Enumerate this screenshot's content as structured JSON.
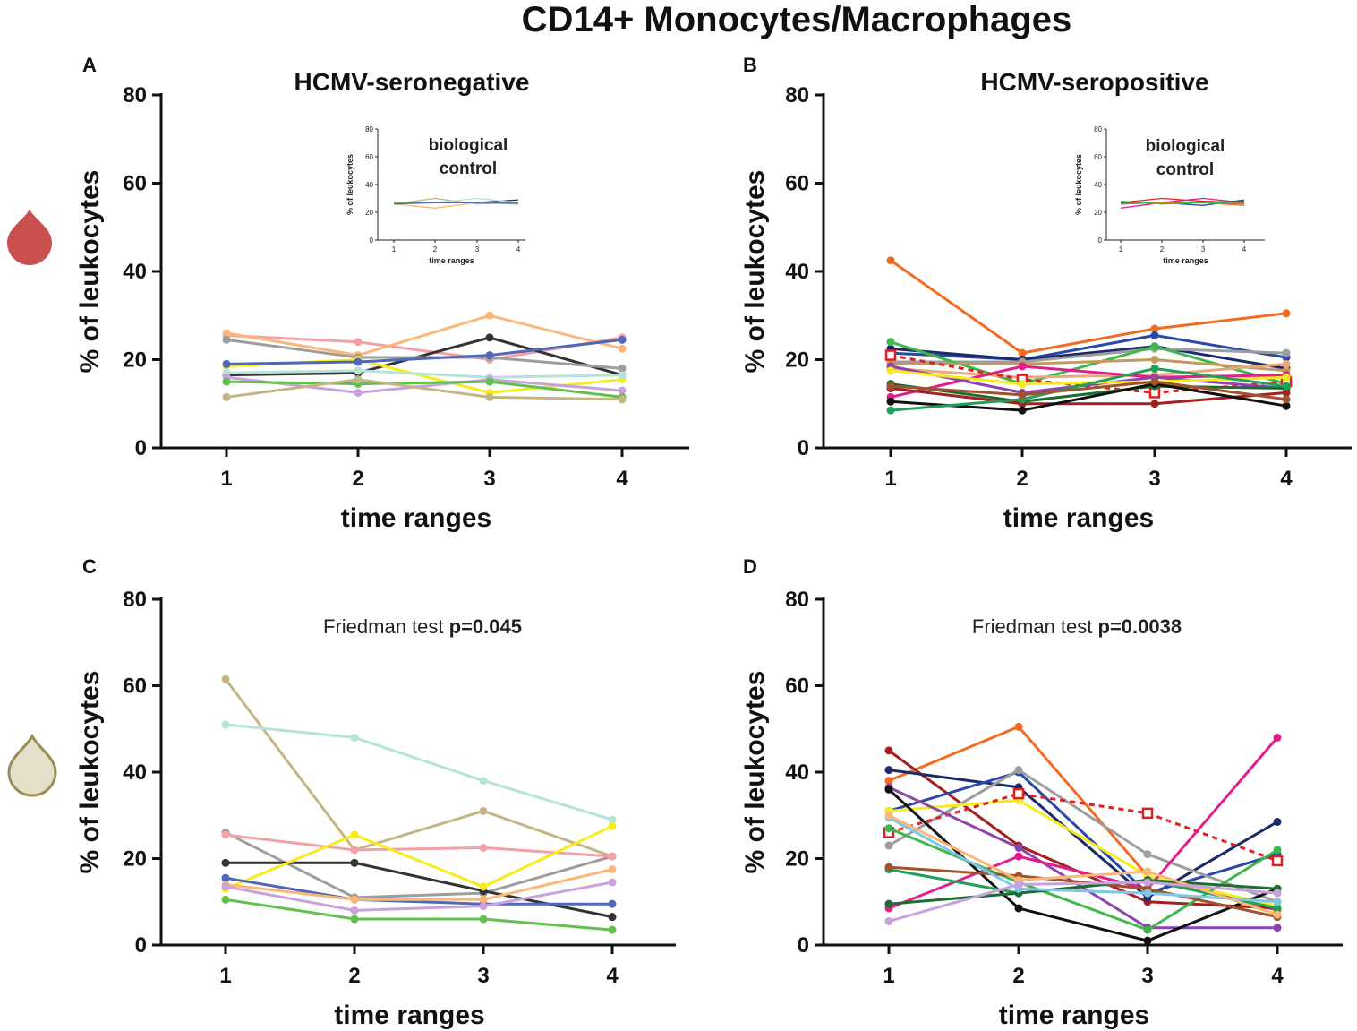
{
  "figure": {
    "title": "CD14+ Monocytes/Macrophages",
    "colors": {
      "blood_drop": "#c9504f",
      "tissue_drop_fill": "#e3dfcb",
      "tissue_drop_stroke": "#9a8d52",
      "axis": "#111111"
    },
    "icons": [
      "blood-drop-icon",
      "tissue-drop-icon"
    ]
  },
  "chart_data": [
    {
      "panel": "A",
      "type": "line",
      "title": "HCMV-seronegative",
      "xlabel": "time ranges",
      "ylabel": "% of leukocytes",
      "categories": [
        "1",
        "2",
        "3",
        "4"
      ],
      "y_ticks": [
        "0",
        "20",
        "40",
        "60",
        "80"
      ],
      "ylim": [
        0,
        80
      ],
      "series": [
        {
          "color": "#f4a0a6",
          "values": [
            25.5,
            24.0,
            20.0,
            25.0
          ]
        },
        {
          "color": "#fbb77a",
          "values": [
            26.0,
            21.0,
            30.0,
            22.5
          ]
        },
        {
          "color": "#333333",
          "values": [
            16.5,
            17.0,
            25.0,
            16.5
          ]
        },
        {
          "color": "#9d9d9d",
          "values": [
            24.5,
            20.5,
            20.5,
            18.0
          ]
        },
        {
          "color": "#f6eb1b",
          "values": [
            18.5,
            20.0,
            12.5,
            15.5
          ]
        },
        {
          "color": "#5068b8",
          "values": [
            19.0,
            19.5,
            21.0,
            24.5
          ]
        },
        {
          "color": "#b5e3d9",
          "values": [
            17.0,
            17.5,
            16.0,
            16.5
          ]
        },
        {
          "color": "#c9a1dd",
          "values": [
            16.0,
            12.5,
            15.5,
            13.0
          ]
        },
        {
          "color": "#62c04d",
          "values": [
            15.0,
            14.5,
            15.0,
            11.5
          ]
        },
        {
          "color": "#c4b584",
          "values": [
            11.5,
            15.5,
            11.5,
            11.0
          ]
        }
      ],
      "inset": {
        "title_line1": "biological",
        "title_line2": "control",
        "xlabel": "time ranges",
        "ylabel": "% of leukocytes",
        "categories": [
          "1",
          "2",
          "3",
          "4"
        ],
        "y_ticks": [
          "0",
          "20",
          "40",
          "60",
          "80"
        ],
        "ylim": [
          0,
          80
        ],
        "series": [
          {
            "color": "#333333",
            "values": [
              27,
              27,
              27,
              29
            ]
          },
          {
            "color": "#c4b584",
            "values": [
              26,
              30,
              26,
              27
            ]
          },
          {
            "color": "#fbb77a",
            "values": [
              26,
              23,
              27,
              27
            ]
          },
          {
            "color": "#b5e3d9",
            "values": [
              27,
              27,
              30,
              27
            ]
          },
          {
            "color": "#62c04d",
            "values": [
              27,
              27,
              27,
              26
            ]
          },
          {
            "color": "#5068b8",
            "values": [
              26,
              27,
              27,
              27
            ]
          }
        ]
      }
    },
    {
      "panel": "B",
      "type": "line",
      "title": "HCMV-seropositive",
      "xlabel": "time ranges",
      "ylabel": "% of leukocytes",
      "categories": [
        "1",
        "2",
        "3",
        "4"
      ],
      "y_ticks": [
        "0",
        "20",
        "40",
        "60",
        "80"
      ],
      "ylim": [
        0,
        80
      ],
      "series": [
        {
          "color": "#f26b21",
          "values": [
            42.5,
            21.5,
            27.0,
            30.5
          ]
        },
        {
          "color": "#2a48a8",
          "values": [
            21.5,
            20.0,
            25.5,
            20.5
          ]
        },
        {
          "color": "#1b2a6b",
          "values": [
            22.5,
            20.0,
            23.0,
            18.0
          ]
        },
        {
          "color": "#9d9d9d",
          "values": [
            19.5,
            19.5,
            22.5,
            21.5
          ]
        },
        {
          "color": "#3fb84b",
          "values": [
            24.0,
            14.5,
            23.0,
            14.5
          ]
        },
        {
          "color": "#c49a5a",
          "values": [
            19.0,
            19.0,
            20.0,
            17.5
          ]
        },
        {
          "color": "#e8a87c",
          "values": [
            18.0,
            16.0,
            16.5,
            19.0
          ]
        },
        {
          "color": "#e41d8c",
          "values": [
            11.5,
            18.5,
            16.0,
            16.5
          ]
        },
        {
          "color": "#e02020",
          "values": [
            21.0,
            15.5,
            12.5,
            15.0
          ],
          "dashed": true
        },
        {
          "color": "#8e44ad",
          "values": [
            18.5,
            12.5,
            16.0,
            13.5
          ]
        },
        {
          "color": "#f6eb1b",
          "values": [
            17.5,
            14.5,
            15.0,
            16.0
          ]
        },
        {
          "color": "#1e6b34",
          "values": [
            14.5,
            10.5,
            14.0,
            13.5
          ]
        },
        {
          "color": "#a32020",
          "values": [
            13.5,
            10.0,
            10.0,
            12.5
          ]
        },
        {
          "color": "#111111",
          "values": [
            10.5,
            8.5,
            14.5,
            9.5
          ]
        },
        {
          "color": "#22a05a",
          "values": [
            8.5,
            11.0,
            18.0,
            14.0
          ]
        },
        {
          "color": "#a0522d",
          "values": [
            14.0,
            12.0,
            15.0,
            11.0
          ]
        }
      ],
      "inset": {
        "title_line1": "biological",
        "title_line2": "control",
        "xlabel": "time ranges",
        "ylabel": "% of leukocytes",
        "categories": [
          "1",
          "2",
          "3",
          "4"
        ],
        "y_ticks": [
          "0",
          "20",
          "40",
          "60",
          "80"
        ],
        "ylim": [
          0,
          80
        ],
        "series": [
          {
            "color": "#e02020",
            "values": [
              27,
              30,
              28,
              27
            ]
          },
          {
            "color": "#e41d8c",
            "values": [
              23,
              27,
              30,
              27
            ]
          },
          {
            "color": "#2a48a8",
            "values": [
              26,
              27,
              25,
              29
            ]
          },
          {
            "color": "#1e6b34",
            "values": [
              27,
              27,
              27,
              28
            ]
          },
          {
            "color": "#f26b21",
            "values": [
              26,
              27,
              27,
              25
            ]
          },
          {
            "color": "#3fb84b",
            "values": [
              28,
              26,
              27,
              26
            ]
          }
        ]
      }
    },
    {
      "panel": "C",
      "type": "line",
      "title": "",
      "stat_prefix": "Friedman test",
      "stat_value": "p=0.045",
      "xlabel": "time ranges",
      "ylabel": "% of leukocytes",
      "categories": [
        "1",
        "2",
        "3",
        "4"
      ],
      "y_ticks": [
        "0",
        "20",
        "40",
        "60",
        "80"
      ],
      "ylim": [
        0,
        80
      ],
      "series": [
        {
          "color": "#c4b584",
          "values": [
            61.5,
            22.0,
            31.0,
            20.5
          ]
        },
        {
          "color": "#b5e3d9",
          "values": [
            51.0,
            48.0,
            38.0,
            29.0
          ]
        },
        {
          "color": "#9d9d9d",
          "values": [
            26.0,
            11.0,
            12.0,
            20.5
          ]
        },
        {
          "color": "#f4a0a6",
          "values": [
            25.5,
            22.0,
            22.5,
            20.5
          ]
        },
        {
          "color": "#333333",
          "values": [
            19.0,
            19.0,
            12.5,
            6.5
          ]
        },
        {
          "color": "#f6eb1b",
          "values": [
            13.0,
            25.5,
            13.5,
            27.5
          ]
        },
        {
          "color": "#5068b8",
          "values": [
            15.5,
            10.5,
            9.5,
            9.5
          ]
        },
        {
          "color": "#fbb77a",
          "values": [
            14.0,
            10.5,
            10.5,
            17.5
          ]
        },
        {
          "color": "#c9a1dd",
          "values": [
            13.5,
            8.0,
            9.0,
            14.5
          ]
        },
        {
          "color": "#62c04d",
          "values": [
            10.5,
            6.0,
            6.0,
            3.5
          ]
        }
      ]
    },
    {
      "panel": "D",
      "type": "line",
      "title": "",
      "stat_prefix": "Friedman test",
      "stat_value": "p=0.0038",
      "xlabel": "time ranges",
      "ylabel": "% of leukocytes",
      "categories": [
        "1",
        "2",
        "3",
        "4"
      ],
      "y_ticks": [
        "0",
        "20",
        "40",
        "60",
        "80"
      ],
      "ylim": [
        0,
        80
      ],
      "series": [
        {
          "color": "#f26b21",
          "values": [
            38.0,
            50.5,
            16.0,
            8.0
          ]
        },
        {
          "color": "#a32020",
          "values": [
            45.0,
            23.0,
            10.0,
            8.5
          ]
        },
        {
          "color": "#1b2a6b",
          "values": [
            40.5,
            36.5,
            11.0,
            28.5
          ]
        },
        {
          "color": "#2a48a8",
          "values": [
            31.0,
            40.0,
            12.0,
            21.0
          ]
        },
        {
          "color": "#9d9d9d",
          "values": [
            23.0,
            40.5,
            21.0,
            10.0
          ]
        },
        {
          "color": "#f6eb1b",
          "values": [
            31.0,
            33.5,
            16.0,
            9.0
          ]
        },
        {
          "color": "#e02020",
          "values": [
            26.0,
            35.0,
            30.5,
            19.5
          ],
          "dashed": true
        },
        {
          "color": "#8e44ad",
          "values": [
            36.5,
            22.5,
            4.0,
            4.0
          ]
        },
        {
          "color": "#e41d8c",
          "values": [
            8.5,
            20.5,
            13.0,
            48.0
          ]
        },
        {
          "color": "#111111",
          "values": [
            36.0,
            8.5,
            1.0,
            13.0
          ]
        },
        {
          "color": "#3fb84b",
          "values": [
            27.0,
            14.5,
            3.5,
            22.0
          ]
        },
        {
          "color": "#22a05a",
          "values": [
            17.5,
            12.0,
            15.0,
            8.5
          ]
        },
        {
          "color": "#a0522d",
          "values": [
            18.0,
            16.0,
            13.0,
            6.5
          ]
        },
        {
          "color": "#1e6b34",
          "values": [
            9.5,
            12.0,
            15.0,
            13.0
          ]
        },
        {
          "color": "#7fc6e8",
          "values": [
            29.5,
            13.0,
            12.0,
            10.0
          ]
        },
        {
          "color": "#fbb77a",
          "values": [
            30.0,
            15.0,
            17.0,
            7.0
          ]
        },
        {
          "color": "#c9a1dd",
          "values": [
            5.5,
            14.0,
            14.5,
            12.0
          ]
        }
      ]
    }
  ]
}
